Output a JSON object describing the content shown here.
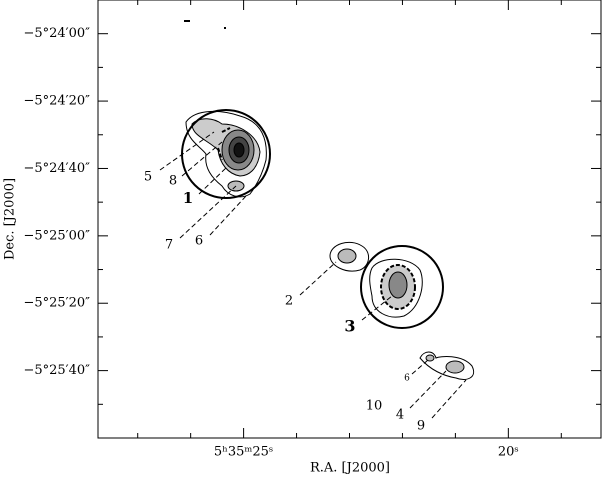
{
  "chart_data": {
    "type": "contour",
    "xlabel": "R.A. [J2000]",
    "ylabel": "Dec. [J2000]",
    "xlim": [
      20127.75,
      20118.25
    ],
    "ylim": [
      -19560,
      -19430
    ],
    "xticks": [
      {
        "value": 20125,
        "label": "5ʰ35ᵐ25ˢ"
      },
      {
        "value": 20120,
        "label": "20ˢ"
      }
    ],
    "xticks_minor": [
      20127,
      20126,
      20124,
      20123,
      20122,
      20121,
      20119
    ],
    "yticks": [
      {
        "value": -19440,
        "label": "−5°24′00″"
      },
      {
        "value": -19460,
        "label": "−5°24′20″"
      },
      {
        "value": -19480,
        "label": "−5°24′40″"
      },
      {
        "value": -19500,
        "label": "−5°25′00″"
      },
      {
        "value": -19520,
        "label": "−5°25′20″"
      },
      {
        "value": -19540,
        "label": "−5°25′40″"
      }
    ],
    "yticks_minor": [
      -19450,
      -19470,
      -19490,
      -19510,
      -19530,
      -19550
    ],
    "annotations": [
      "5",
      "8",
      "1",
      "7",
      "6",
      "2",
      "3",
      "10",
      "6",
      "4",
      "9"
    ]
  }
}
